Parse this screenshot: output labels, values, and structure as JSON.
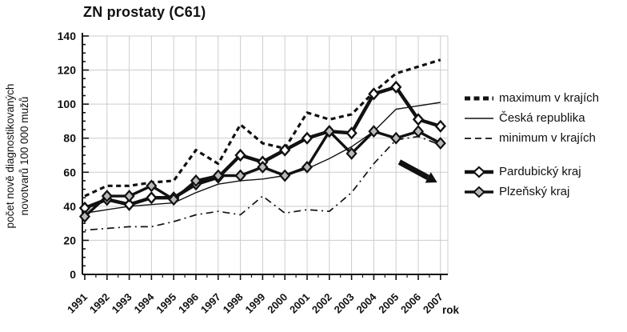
{
  "chart_data": {
    "type": "line",
    "title": "ZN prostaty (C61)",
    "ylabel_lines": [
      "počet nově diagnostikovaných",
      "novotvarů 100 000 mužů"
    ],
    "xlabel": "rok",
    "ylim": [
      0,
      140
    ],
    "ytick_step": 20,
    "grid": true,
    "legend_position": "right",
    "x": [
      1991,
      1992,
      1993,
      1994,
      1995,
      1996,
      1997,
      1998,
      1999,
      2000,
      2001,
      2002,
      2003,
      2004,
      2005,
      2006,
      2007
    ],
    "series": [
      {
        "name": "maximum v krajích",
        "style": "dashed-thick",
        "values": [
          46,
          52,
          52,
          54,
          55,
          73,
          65,
          88,
          77,
          74,
          95,
          91,
          94,
          107,
          118,
          122,
          126
        ]
      },
      {
        "name": "Česká republika",
        "style": "solid-thin",
        "values": [
          36,
          38,
          40,
          41,
          42,
          48,
          53,
          55,
          56,
          58,
          62,
          68,
          75,
          84,
          97,
          99,
          101
        ]
      },
      {
        "name": "minimum v krajích",
        "style": "dashed-thin",
        "values": [
          26,
          27,
          28,
          28,
          31,
          35,
          37,
          35,
          46,
          36,
          38,
          37,
          48,
          65,
          79,
          81,
          76
        ]
      },
      {
        "name": "Pardubický kraj",
        "style": "thick-open-diamond",
        "values": [
          39,
          44,
          41,
          45,
          45,
          53,
          57,
          70,
          66,
          73,
          80,
          84,
          83,
          106,
          110,
          91,
          87
        ]
      },
      {
        "name": "Plzeňský kraj",
        "style": "thick-gray-diamond",
        "values": [
          34,
          46,
          46,
          52,
          44,
          55,
          58,
          58,
          63,
          58,
          63,
          84,
          71,
          84,
          80,
          84,
          77
        ]
      }
    ],
    "annotations": [
      {
        "type": "arrow",
        "direction": "down-right",
        "x1": 2005.15,
        "y1": 66,
        "x2": 2006.85,
        "y2": 54
      }
    ]
  },
  "colors": {
    "line": "#111111",
    "grid": "#cccccc",
    "marker_gray": "#b9b9b9",
    "marker_open": "#ffffff",
    "background": "#ffffff"
  }
}
